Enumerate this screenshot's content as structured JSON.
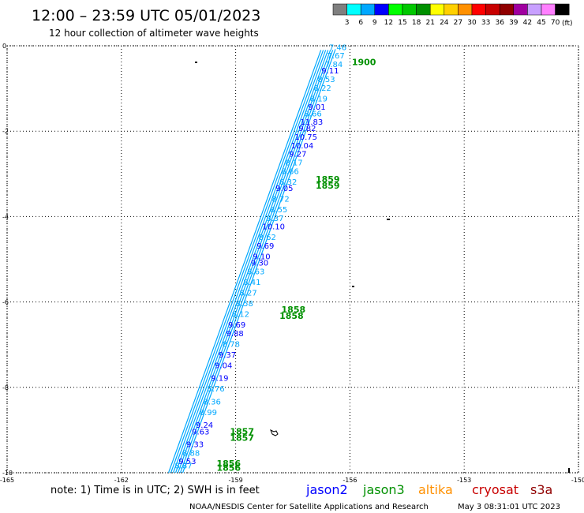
{
  "header": {
    "title": "12:00 – 23:59 UTC 05/01/2023",
    "subtitle": "12 hour collection of altimeter wave heights"
  },
  "legend": {
    "unit": "(ft)",
    "items": [
      {
        "label": "3",
        "color": "#7f7f7f"
      },
      {
        "label": "6",
        "color": "#00ffff"
      },
      {
        "label": "9",
        "color": "#00a8ff"
      },
      {
        "label": "12",
        "color": "#0000ff"
      },
      {
        "label": "15",
        "color": "#00ff00"
      },
      {
        "label": "18",
        "color": "#00c800"
      },
      {
        "label": "21",
        "color": "#009000"
      },
      {
        "label": "24",
        "color": "#ffff00"
      },
      {
        "label": "27",
        "color": "#ffd000"
      },
      {
        "label": "30",
        "color": "#ff9000"
      },
      {
        "label": "33",
        "color": "#ff0000"
      },
      {
        "label": "36",
        "color": "#c80000"
      },
      {
        "label": "39",
        "color": "#900000"
      },
      {
        "label": "42",
        "color": "#a000a0"
      },
      {
        "label": "45",
        "color": "#c8a0ff"
      },
      {
        "label": "70",
        "color": "#ff80ff"
      },
      {
        "label": "",
        "color": "#000000"
      }
    ]
  },
  "axes": {
    "y_labels": [
      "0",
      "-2",
      "-4",
      "-6",
      "-8",
      "-10"
    ],
    "x_labels": [
      "-165",
      "-162",
      "-159",
      "-156",
      "-153",
      "-150"
    ]
  },
  "chart_data": {
    "type": "scatter",
    "projection": "lat-lon",
    "xlim": [
      -165,
      -150
    ],
    "ylim": [
      -10,
      0
    ],
    "grid": true,
    "x_ticks": [
      -165,
      -162,
      -159,
      -156,
      -153,
      -150
    ],
    "y_ticks": [
      0,
      -2,
      -4,
      -6,
      -8,
      -10
    ],
    "satellites": [
      {
        "name": "jason2",
        "color": "#0000ff"
      },
      {
        "name": "jason3",
        "color": "#009000"
      },
      {
        "name": "altika",
        "color": "#ff9000"
      },
      {
        "name": "cryosat",
        "color": "#c80000"
      },
      {
        "name": "s3a",
        "color": "#900000"
      }
    ],
    "track": {
      "start": {
        "lon": -156.7,
        "lat": -0.1
      },
      "end": {
        "lon": -160.7,
        "lat": -10.0
      },
      "color_light": "#00a8ff",
      "color_dark": "#0000ff",
      "swh_values": [
        {
          "lon": -156.55,
          "lat": -0.1,
          "v": "7.46",
          "c": "#00a8ff"
        },
        {
          "lon": -156.6,
          "lat": -0.3,
          "v": "7.67",
          "c": "#00a8ff"
        },
        {
          "lon": -156.65,
          "lat": -0.5,
          "v": "7.84",
          "c": "#00a8ff"
        },
        {
          "lon": -156.75,
          "lat": -0.65,
          "v": "9.11",
          "c": "#0000ff"
        },
        {
          "lon": -156.85,
          "lat": -0.85,
          "v": "8.53",
          "c": "#00a8ff"
        },
        {
          "lon": -156.95,
          "lat": -1.05,
          "v": "8.22",
          "c": "#00a8ff"
        },
        {
          "lon": -157.05,
          "lat": -1.3,
          "v": "8.19",
          "c": "#00a8ff"
        },
        {
          "lon": -157.1,
          "lat": -1.5,
          "v": "9.01",
          "c": "#0000ff"
        },
        {
          "lon": -157.2,
          "lat": -1.65,
          "v": "8.66",
          "c": "#00a8ff"
        },
        {
          "lon": -157.3,
          "lat": -1.85,
          "v": "11.83",
          "c": "#0000ff"
        },
        {
          "lon": -157.35,
          "lat": -2.0,
          "v": "9.82",
          "c": "#0000ff"
        },
        {
          "lon": -157.45,
          "lat": -2.2,
          "v": "10.75",
          "c": "#0000ff"
        },
        {
          "lon": -157.55,
          "lat": -2.4,
          "v": "10.04",
          "c": "#0000ff"
        },
        {
          "lon": -157.6,
          "lat": -2.6,
          "v": "9.27",
          "c": "#0000ff"
        },
        {
          "lon": -157.7,
          "lat": -2.8,
          "v": "8.17",
          "c": "#00a8ff"
        },
        {
          "lon": -157.8,
          "lat": -3.0,
          "v": "8.66",
          "c": "#00a8ff"
        },
        {
          "lon": -157.85,
          "lat": -3.25,
          "v": "8.32",
          "c": "#00a8ff"
        },
        {
          "lon": -157.95,
          "lat": -3.4,
          "v": "9.05",
          "c": "#0000ff"
        },
        {
          "lon": -158.05,
          "lat": -3.65,
          "v": "8.72",
          "c": "#00a8ff"
        },
        {
          "lon": -158.1,
          "lat": -3.9,
          "v": "8.55",
          "c": "#00a8ff"
        },
        {
          "lon": -158.2,
          "lat": -4.1,
          "v": "8.37",
          "c": "#00a8ff"
        },
        {
          "lon": -158.3,
          "lat": -4.3,
          "v": "10.10",
          "c": "#0000ff"
        },
        {
          "lon": -158.4,
          "lat": -4.55,
          "v": "8.62",
          "c": "#00a8ff"
        },
        {
          "lon": -158.45,
          "lat": -4.75,
          "v": "9.69",
          "c": "#0000ff"
        },
        {
          "lon": -158.55,
          "lat": -5.0,
          "v": "9.10",
          "c": "#0000ff"
        },
        {
          "lon": -158.6,
          "lat": -5.15,
          "v": "9.30",
          "c": "#0000ff"
        },
        {
          "lon": -158.7,
          "lat": -5.35,
          "v": "8.63",
          "c": "#00a8ff"
        },
        {
          "lon": -158.8,
          "lat": -5.6,
          "v": "8.41",
          "c": "#00a8ff"
        },
        {
          "lon": -158.9,
          "lat": -5.85,
          "v": "8.27",
          "c": "#00a8ff"
        },
        {
          "lon": -159.0,
          "lat": -6.1,
          "v": "8.58",
          "c": "#00a8ff"
        },
        {
          "lon": -159.1,
          "lat": -6.35,
          "v": "8.12",
          "c": "#00a8ff"
        },
        {
          "lon": -159.2,
          "lat": -6.6,
          "v": "9.69",
          "c": "#0000ff"
        },
        {
          "lon": -159.25,
          "lat": -6.8,
          "v": "9.88",
          "c": "#0000ff"
        },
        {
          "lon": -159.35,
          "lat": -7.05,
          "v": "8.78",
          "c": "#00a8ff"
        },
        {
          "lon": -159.45,
          "lat": -7.3,
          "v": "9.37",
          "c": "#0000ff"
        },
        {
          "lon": -159.55,
          "lat": -7.55,
          "v": "9.04",
          "c": "#0000ff"
        },
        {
          "lon": -159.65,
          "lat": -7.85,
          "v": "9.19",
          "c": "#0000ff"
        },
        {
          "lon": -159.75,
          "lat": -8.1,
          "v": "8.76",
          "c": "#00a8ff"
        },
        {
          "lon": -159.85,
          "lat": -8.4,
          "v": "8.36",
          "c": "#00a8ff"
        },
        {
          "lon": -159.95,
          "lat": -8.65,
          "v": "8.99",
          "c": "#00a8ff"
        },
        {
          "lon": -160.05,
          "lat": -8.95,
          "v": "9.24",
          "c": "#0000ff"
        },
        {
          "lon": -160.15,
          "lat": -9.1,
          "v": "9.63",
          "c": "#0000ff"
        },
        {
          "lon": -160.3,
          "lat": -9.4,
          "v": "9.33",
          "c": "#0000ff"
        },
        {
          "lon": -160.4,
          "lat": -9.6,
          "v": "8.88",
          "c": "#00a8ff"
        },
        {
          "lon": -160.5,
          "lat": -9.8,
          "v": "9.53",
          "c": "#0000ff"
        },
        {
          "lon": -160.6,
          "lat": -9.9,
          "v": "8.87",
          "c": "#00a8ff"
        }
      ]
    },
    "time_labels": [
      {
        "text": "1900",
        "lon": -155.95,
        "lat": -0.45
      },
      {
        "text": "1859",
        "lon": -156.9,
        "lat": -3.2
      },
      {
        "text": "1859",
        "lon": -156.9,
        "lat": -3.35
      },
      {
        "text": "1858",
        "lon": -157.8,
        "lat": -6.25
      },
      {
        "text": "1858",
        "lon": -157.85,
        "lat": -6.4
      },
      {
        "text": "1857",
        "lon": -159.15,
        "lat": -9.1
      },
      {
        "text": "1857",
        "lon": -159.15,
        "lat": -9.25
      },
      {
        "text": "1856",
        "lon": -159.5,
        "lat": -9.85
      },
      {
        "text": "1856",
        "lon": -159.5,
        "lat": -9.95
      }
    ]
  },
  "footer": {
    "note": "note: 1) Time is in UTC; 2) SWH is in feet",
    "credit": "NOAA/NESDIS Center for Satellite Applications and Research",
    "timestamp": "May  3 08:31:01 UTC 2023"
  }
}
